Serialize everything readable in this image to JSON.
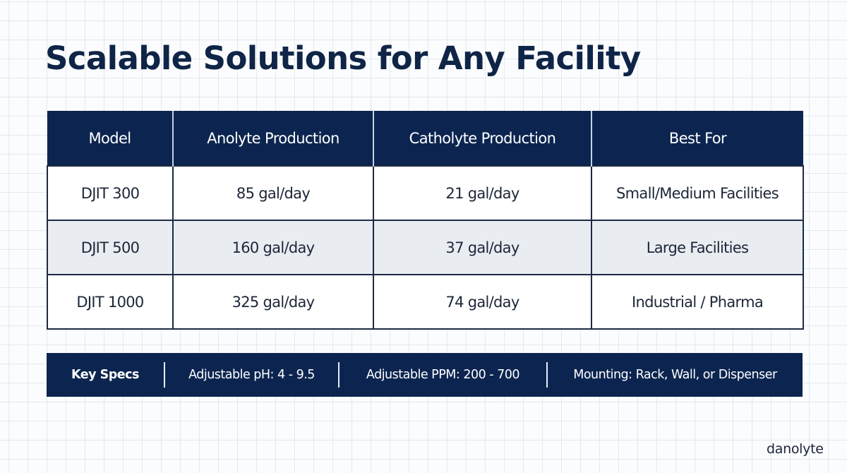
{
  "slide": {
    "title": "Scalable Solutions for Any Facility"
  },
  "table": {
    "headers": [
      "Model",
      "Anolyte Production",
      "Catholyte Production",
      "Best For"
    ],
    "rows": [
      {
        "model": "DJIT 300",
        "anolyte": "85 gal/day",
        "catholyte": "21 gal/day",
        "best_for": "Small/Medium Facilities"
      },
      {
        "model": "DJIT 500",
        "anolyte": "160 gal/day",
        "catholyte": "37 gal/day",
        "best_for": "Large Facilities"
      },
      {
        "model": "DJIT 1000",
        "anolyte": "325 gal/day",
        "catholyte": "74 gal/day",
        "best_for": "Industrial / Pharma"
      }
    ]
  },
  "key_specs": {
    "label": "Key Specs",
    "items": [
      "Adjustable pH: 4 - 9.5",
      "Adjustable PPM: 200 - 700",
      "Mounting: Rack, Wall, or Dispenser"
    ]
  },
  "brand": {
    "logo_text": "danolyte"
  },
  "colors": {
    "navy": "#0c2550",
    "title": "#0f2547",
    "alt_row": "#e9edf2",
    "border": "#1d2a44"
  }
}
